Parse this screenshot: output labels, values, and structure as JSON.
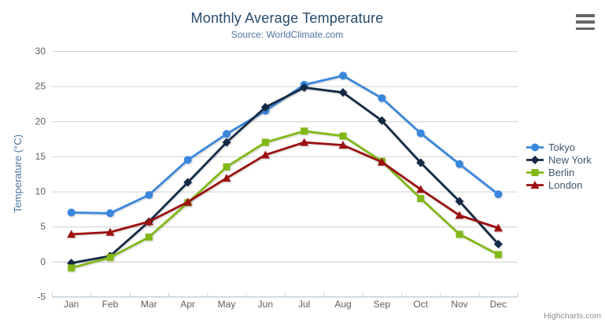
{
  "chart_data": {
    "type": "line",
    "title": "Monthly Average Temperature",
    "subtitle": "Source: WorldClimate.com",
    "categories": [
      "Jan",
      "Feb",
      "Mar",
      "Apr",
      "May",
      "Jun",
      "Jul",
      "Aug",
      "Sep",
      "Oct",
      "Nov",
      "Dec"
    ],
    "series": [
      {
        "name": "Tokyo",
        "color": "#3a87dd",
        "marker": "circle",
        "values": [
          7.0,
          6.9,
          9.5,
          14.5,
          18.2,
          21.5,
          25.2,
          26.5,
          23.3,
          18.3,
          13.9,
          9.6
        ]
      },
      {
        "name": "New York",
        "color": "#132944",
        "marker": "diamond",
        "values": [
          -0.2,
          0.8,
          5.7,
          11.3,
          17.0,
          22.0,
          24.8,
          24.1,
          20.1,
          14.1,
          8.6,
          2.5
        ]
      },
      {
        "name": "Berlin",
        "color": "#82b816",
        "marker": "square",
        "values": [
          -0.9,
          0.6,
          3.5,
          8.4,
          13.5,
          17.0,
          18.6,
          17.9,
          14.3,
          9.0,
          3.9,
          1.0
        ]
      },
      {
        "name": "London",
        "color": "#9c1010",
        "marker": "triangle",
        "values": [
          3.9,
          4.2,
          5.7,
          8.5,
          11.9,
          15.2,
          17.0,
          16.6,
          14.2,
          10.3,
          6.6,
          4.8
        ]
      }
    ],
    "xlabel": "",
    "ylabel": "Temperature (°C)",
    "ylim": [
      -5,
      30
    ],
    "yticks": [
      -5,
      0,
      5,
      10,
      15,
      20,
      25,
      30
    ],
    "grid": true,
    "legend_position": "right"
  },
  "legend": {
    "items": [
      "Tokyo",
      "New York",
      "Berlin",
      "London"
    ]
  },
  "export_menu": {
    "icon": "hamburger-icon"
  },
  "credits": {
    "label": "Highcharts.com"
  },
  "colors": {
    "title": "#274b6d",
    "subtitle": "#4d759e",
    "axis_title": "#4d759e",
    "tick_label": "#606060",
    "grid_line": "#d0d0d0",
    "axis_line": "#c0d0e0",
    "legend_text": "#3e576f",
    "menu_icon": "#666666",
    "credits_text": "#909090"
  }
}
